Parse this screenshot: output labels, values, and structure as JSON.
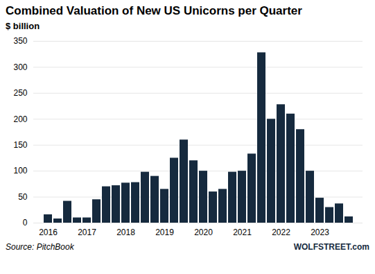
{
  "chart_data": {
    "type": "bar",
    "title": "Combined Valuation of New US Unicorns per Quarter",
    "subtitle": "$ billion",
    "annotations": [
      "Source: PitchBook",
      "WOLFSTREET.com"
    ],
    "categories": [
      "2016",
      null,
      null,
      null,
      "2017",
      null,
      null,
      null,
      "2018",
      null,
      null,
      null,
      "2019",
      null,
      null,
      null,
      "2020",
      null,
      null,
      null,
      "2021",
      null,
      null,
      null,
      "2022",
      null,
      null,
      null,
      "2023",
      null,
      null,
      null
    ],
    "values": [
      16,
      8,
      42,
      10,
      10,
      45,
      70,
      72,
      77,
      78,
      98,
      90,
      65,
      125,
      160,
      120,
      100,
      60,
      65,
      98,
      100,
      133,
      328,
      200,
      228,
      210,
      180,
      100,
      48,
      30,
      37,
      12
    ],
    "color": "#162a3e",
    "ylim": [
      0,
      350
    ],
    "yticks": [
      0,
      50,
      100,
      150,
      200,
      250,
      300,
      350
    ],
    "grid": true
  }
}
